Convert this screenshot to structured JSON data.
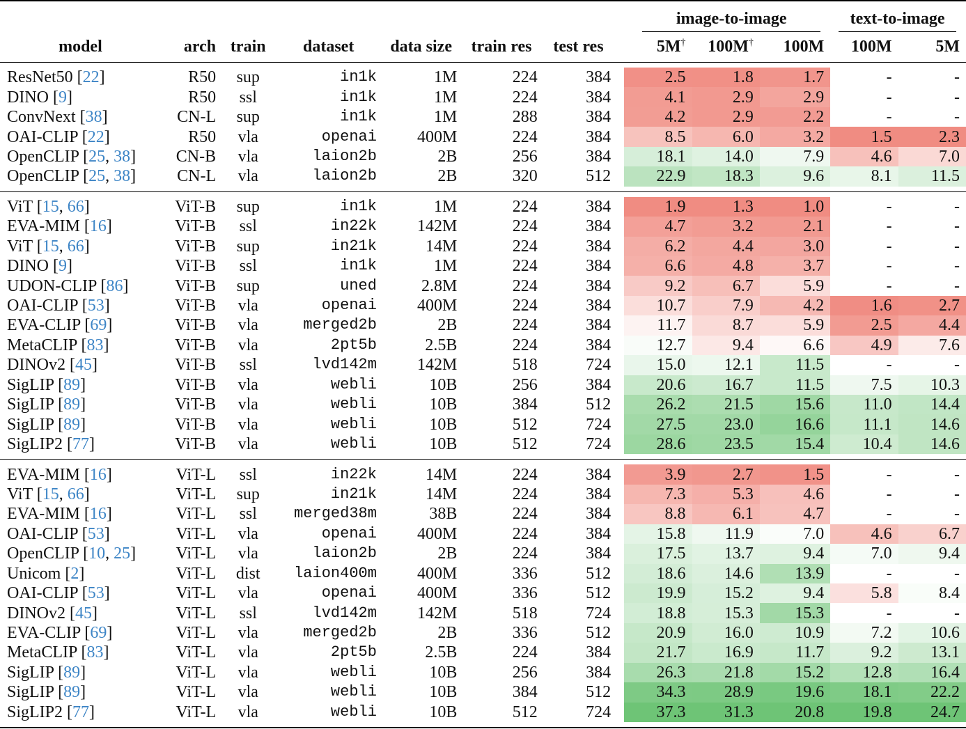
{
  "header": {
    "groups": [
      "image-to-image",
      "text-to-image"
    ],
    "columns": [
      "model",
      "arch",
      "train",
      "dataset",
      "data size",
      "train res",
      "test res",
      {
        "text": "5M",
        "sup": "†"
      },
      {
        "text": "100M",
        "sup": "†"
      },
      "100M",
      "100M",
      "5M"
    ]
  },
  "groups": [
    [
      [
        "ResNet50",
        "[22]",
        "R50",
        "sup",
        "in1k",
        "1M",
        "224",
        "384",
        "2.5",
        "1.8",
        "1.7",
        "-",
        "-"
      ],
      [
        "DINO",
        "[9]",
        "R50",
        "ssl",
        "in1k",
        "1M",
        "224",
        "384",
        "4.1",
        "2.9",
        "2.9",
        "-",
        "-"
      ],
      [
        "ConvNext",
        "[38]",
        "CN-L",
        "sup",
        "in1k",
        "1M",
        "288",
        "384",
        "4.2",
        "2.9",
        "2.2",
        "-",
        "-"
      ],
      [
        "OAI-CLIP",
        "[22]",
        "R50",
        "vla",
        "openai",
        "400M",
        "224",
        "384",
        "8.5",
        "6.0",
        "3.2",
        "1.5",
        "2.3"
      ],
      [
        "OpenCLIP",
        "[25, 38]",
        "CN-B",
        "vla",
        "laion2b",
        "2B",
        "256",
        "384",
        "18.1",
        "14.0",
        "7.9",
        "4.6",
        "7.0"
      ],
      [
        "OpenCLIP",
        "[25, 38]",
        "CN-L",
        "vla",
        "laion2b",
        "2B",
        "320",
        "512",
        "22.9",
        "18.3",
        "9.6",
        "8.1",
        "11.5"
      ]
    ],
    [
      [
        "ViT",
        "[15, 66]",
        "ViT-B",
        "sup",
        "in1k",
        "1M",
        "224",
        "384",
        "1.9",
        "1.3",
        "1.0",
        "-",
        "-"
      ],
      [
        "EVA-MIM",
        "[16]",
        "ViT-B",
        "ssl",
        "in22k",
        "142M",
        "224",
        "384",
        "4.7",
        "3.2",
        "2.1",
        "-",
        "-"
      ],
      [
        "ViT",
        "[15, 66]",
        "ViT-B",
        "sup",
        "in21k",
        "14M",
        "224",
        "384",
        "6.2",
        "4.4",
        "3.0",
        "-",
        "-"
      ],
      [
        "DINO",
        "[9]",
        "ViT-B",
        "ssl",
        "in1k",
        "1M",
        "224",
        "384",
        "6.6",
        "4.8",
        "3.7",
        "-",
        "-"
      ],
      [
        "UDON-CLIP",
        "[86]",
        "ViT-B",
        "sup",
        "uned",
        "2.8M",
        "224",
        "384",
        "9.2",
        "6.7",
        "5.9",
        "-",
        "-"
      ],
      [
        "OAI-CLIP",
        "[53]",
        "ViT-B",
        "vla",
        "openai",
        "400M",
        "224",
        "384",
        "10.7",
        "7.9",
        "4.2",
        "1.6",
        "2.7"
      ],
      [
        "EVA-CLIP",
        "[69]",
        "ViT-B",
        "vla",
        "merged2b",
        "2B",
        "224",
        "384",
        "11.7",
        "8.7",
        "5.9",
        "2.5",
        "4.4"
      ],
      [
        "MetaCLIP",
        "[83]",
        "ViT-B",
        "vla",
        "2pt5b",
        "2.5B",
        "224",
        "384",
        "12.7",
        "9.4",
        "6.6",
        "4.9",
        "7.6"
      ],
      [
        "DINOv2",
        "[45]",
        "ViT-B",
        "ssl",
        "lvd142m",
        "142M",
        "518",
        "724",
        "15.0",
        "12.1",
        "11.5",
        "-",
        "-"
      ],
      [
        "SigLIP",
        "[89]",
        "ViT-B",
        "vla",
        "webli",
        "10B",
        "256",
        "384",
        "20.6",
        "16.7",
        "11.5",
        "7.5",
        "10.3"
      ],
      [
        "SigLIP",
        "[89]",
        "ViT-B",
        "vla",
        "webli",
        "10B",
        "384",
        "512",
        "26.2",
        "21.5",
        "15.6",
        "11.0",
        "14.4"
      ],
      [
        "SigLIP",
        "[89]",
        "ViT-B",
        "vla",
        "webli",
        "10B",
        "512",
        "724",
        "27.5",
        "23.0",
        "16.6",
        "11.1",
        "14.6"
      ],
      [
        "SigLIP2",
        "[77]",
        "ViT-B",
        "vla",
        "webli",
        "10B",
        "512",
        "724",
        "28.6",
        "23.5",
        "15.4",
        "10.4",
        "14.6"
      ]
    ],
    [
      [
        "EVA-MIM",
        "[16]",
        "ViT-L",
        "ssl",
        "in22k",
        "14M",
        "224",
        "384",
        "3.9",
        "2.7",
        "1.5",
        "-",
        "-"
      ],
      [
        "ViT",
        "[15, 66]",
        "ViT-L",
        "sup",
        "in21k",
        "14M",
        "224",
        "384",
        "7.3",
        "5.3",
        "4.6",
        "-",
        "-"
      ],
      [
        "EVA-MIM",
        "[16]",
        "ViT-L",
        "ssl",
        "merged38m",
        "38B",
        "224",
        "384",
        "8.8",
        "6.1",
        "4.7",
        "-",
        "-"
      ],
      [
        "OAI-CLIP",
        "[53]",
        "ViT-L",
        "vla",
        "openai",
        "400M",
        "224",
        "384",
        "15.8",
        "11.9",
        "7.0",
        "4.6",
        "6.7"
      ],
      [
        "OpenCLIP",
        "[10, 25]",
        "ViT-L",
        "vla",
        "laion2b",
        "2B",
        "224",
        "384",
        "17.5",
        "13.7",
        "9.4",
        "7.0",
        "9.4"
      ],
      [
        "Unicom",
        "[2]",
        "ViT-L",
        "dist",
        "laion400m",
        "400M",
        "336",
        "512",
        "18.6",
        "14.6",
        "13.9",
        "-",
        "-"
      ],
      [
        "OAI-CLIP",
        "[53]",
        "ViT-L",
        "vla",
        "openai",
        "400M",
        "336",
        "512",
        "19.9",
        "15.2",
        "9.4",
        "5.8",
        "8.4"
      ],
      [
        "DINOv2",
        "[45]",
        "ViT-L",
        "ssl",
        "lvd142m",
        "142M",
        "518",
        "724",
        "18.8",
        "15.3",
        "15.3",
        "-",
        "-"
      ],
      [
        "EVA-CLIP",
        "[69]",
        "ViT-L",
        "vla",
        "merged2b",
        "2B",
        "336",
        "512",
        "20.9",
        "16.0",
        "10.9",
        "7.2",
        "10.6"
      ],
      [
        "MetaCLIP",
        "[83]",
        "ViT-L",
        "vla",
        "2pt5b",
        "2.5B",
        "224",
        "384",
        "21.7",
        "16.9",
        "11.7",
        "9.2",
        "13.1"
      ],
      [
        "SigLIP",
        "[89]",
        "ViT-L",
        "vla",
        "webli",
        "10B",
        "256",
        "384",
        "26.3",
        "21.8",
        "15.2",
        "12.8",
        "16.4"
      ],
      [
        "SigLIP",
        "[89]",
        "ViT-L",
        "vla",
        "webli",
        "10B",
        "384",
        "512",
        "34.3",
        "28.9",
        "19.6",
        "18.1",
        "22.2"
      ],
      [
        "SigLIP2",
        "[77]",
        "ViT-L",
        "vla",
        "webli",
        "10B",
        "512",
        "724",
        "37.3",
        "31.3",
        "20.8",
        "19.8",
        "24.7"
      ]
    ]
  ]
}
